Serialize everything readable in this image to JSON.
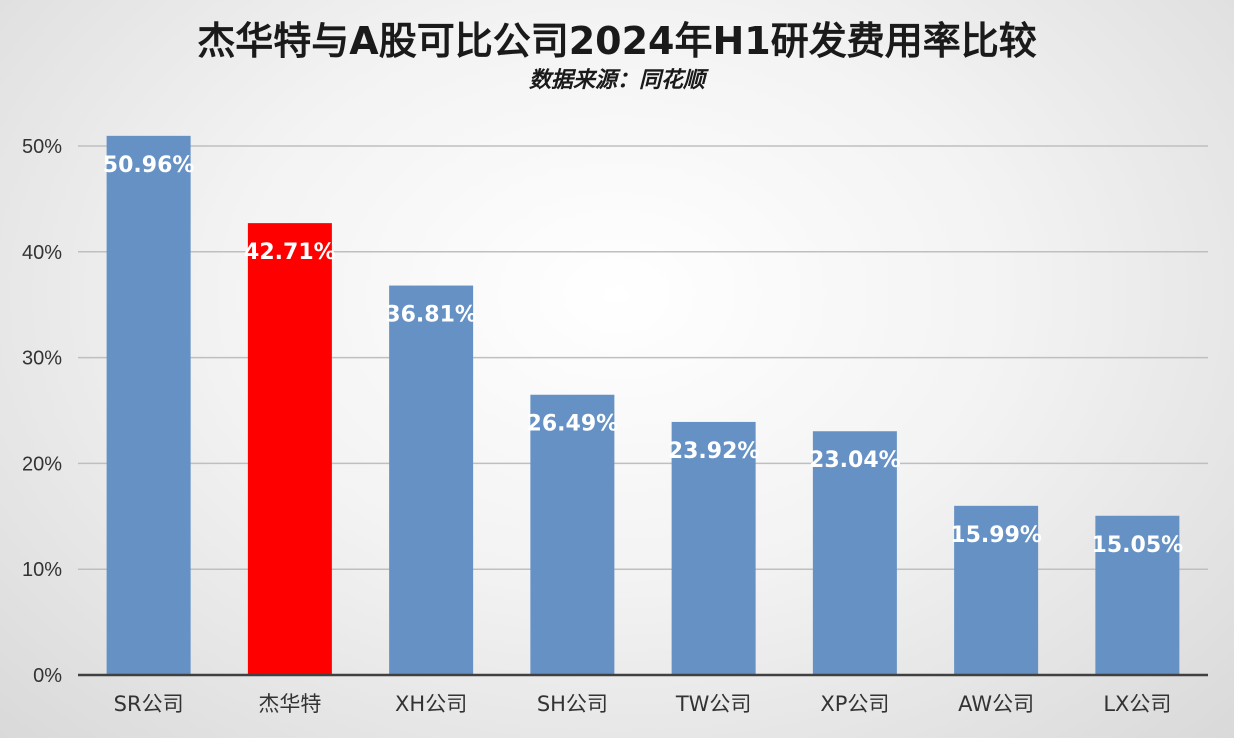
{
  "chart_data": {
    "type": "bar",
    "title": "杰华特与A股可比公司2024年H1研发费用率比较",
    "subtitle": "数据来源：同花顺",
    "xlabel": "",
    "ylabel": "",
    "categories": [
      "SR公司",
      "杰华特",
      "XH公司",
      "SH公司",
      "TW公司",
      "XP公司",
      "AW公司",
      "LX公司"
    ],
    "values": [
      50.96,
      42.71,
      36.81,
      26.49,
      23.92,
      23.04,
      15.99,
      15.05
    ],
    "value_labels": [
      "50.96%",
      "42.71%",
      "36.81%",
      "26.49%",
      "23.92%",
      "23.04%",
      "15.99%",
      "15.05%"
    ],
    "y_ticks": [
      0,
      10,
      20,
      30,
      40,
      50
    ],
    "y_tick_labels": [
      "0%",
      "10%",
      "20%",
      "30%",
      "40%",
      "50%"
    ],
    "ylim": [
      0,
      50
    ],
    "grid": true,
    "legend": "none",
    "colors": {
      "default_bar": "#6691c4",
      "highlight_bar": "#ff0000",
      "highlight_category": "杰华特",
      "grid": "#bfbfbf",
      "axis": "#404040",
      "value_label": "#ffffff",
      "tick_label": "#333333"
    }
  }
}
